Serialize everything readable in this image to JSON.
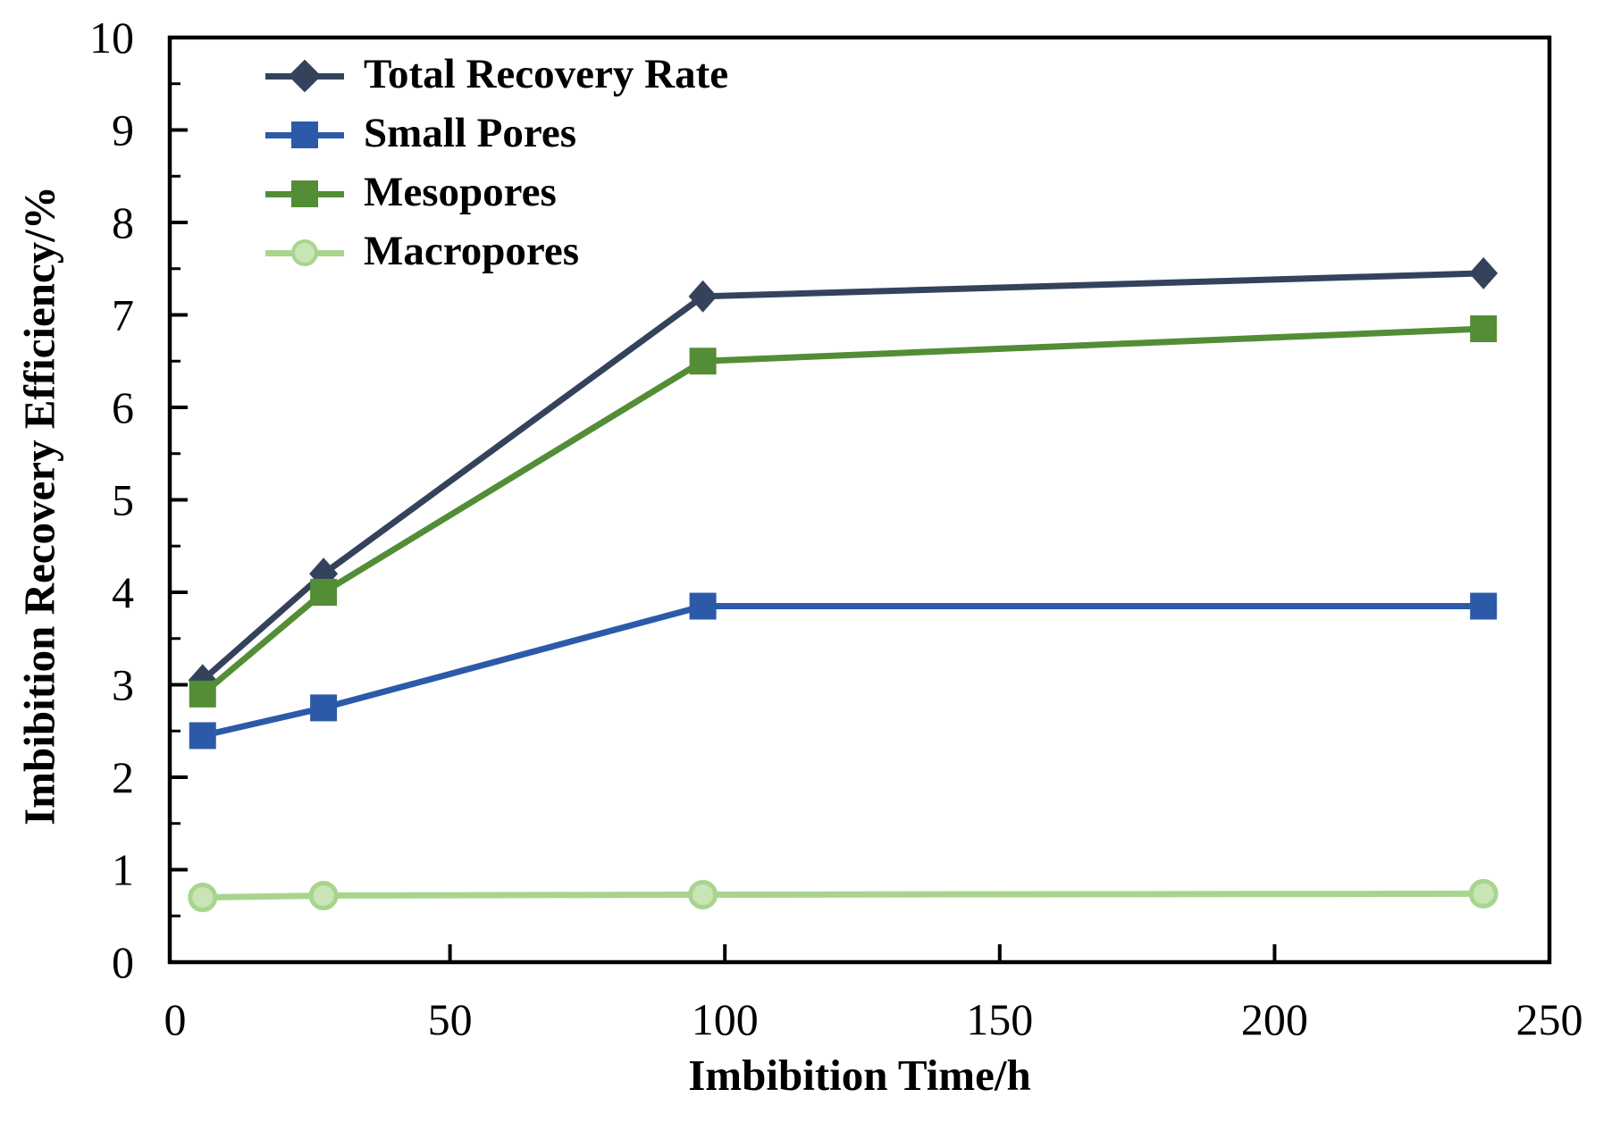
{
  "figure": {
    "background": "#ffffff",
    "text_color": "#000000",
    "axis_color": "#000000"
  },
  "chart_data": {
    "type": "line",
    "title": "",
    "xlabel": "Imbibition Time/h",
    "ylabel": "Imbibition Recovery Efficiency/%",
    "x": [
      5,
      27,
      96,
      238
    ],
    "xlim": [
      0,
      250
    ],
    "ylim": [
      0,
      10
    ],
    "x_ticks": [
      0,
      50,
      100,
      150,
      200,
      250
    ],
    "y_ticks": [
      0,
      1,
      2,
      3,
      4,
      5,
      6,
      7,
      8,
      9,
      10
    ],
    "y_minor_tick_step": 0.5,
    "grid": false,
    "legend_position": "top-left-inside",
    "series": [
      {
        "name": "Total Recovery Rate",
        "marker": "diamond",
        "color": "#35425c",
        "marker_fill": "#35425c",
        "values": [
          3.05,
          4.2,
          7.2,
          7.45
        ]
      },
      {
        "name": "Small Pores",
        "marker": "square",
        "color": "#2d5aa8",
        "marker_fill": "#2d5aa8",
        "values": [
          2.45,
          2.75,
          3.85,
          3.85
        ]
      },
      {
        "name": "Mesopores",
        "marker": "square",
        "color": "#538d35",
        "marker_fill": "#538d35",
        "values": [
          2.9,
          4.0,
          6.5,
          6.85
        ]
      },
      {
        "name": "Macropores",
        "marker": "circle",
        "color": "#a8d58e",
        "marker_fill": "#c9e5b6",
        "values": [
          0.7,
          0.72,
          0.73,
          0.74
        ]
      }
    ]
  }
}
